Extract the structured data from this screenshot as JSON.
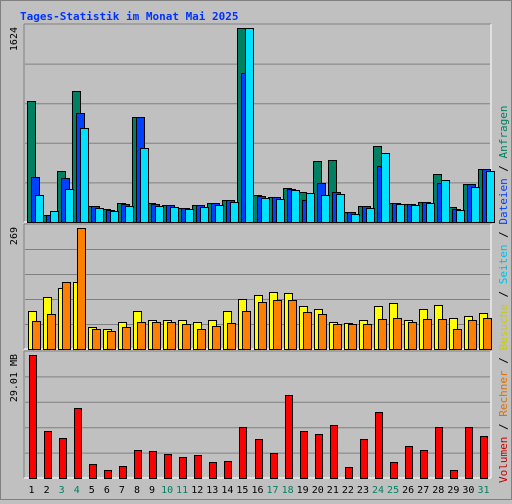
{
  "chart_data": {
    "type": "bar",
    "title": "Tages-Statistik im Monat Mai 2025",
    "categories": [
      "1",
      "2",
      "3",
      "4",
      "5",
      "6",
      "7",
      "8",
      "9",
      "10",
      "11",
      "12",
      "13",
      "14",
      "15",
      "16",
      "17",
      "18",
      "19",
      "20",
      "21",
      "22",
      "23",
      "24",
      "25",
      "26",
      "27",
      "28",
      "29",
      "30",
      "31"
    ],
    "weekend_days": [
      3,
      4,
      10,
      11,
      17,
      18,
      24,
      25,
      31
    ],
    "panels": [
      {
        "id": "top",
        "max_label": "1624",
        "ymax": 1624,
        "series": [
          {
            "name": "Anfragen",
            "color": "#008060",
            "values": [
              1015,
              60,
              430,
              1100,
              130,
              105,
              160,
              880,
              155,
              140,
              120,
              140,
              160,
              180,
              1624,
              225,
              210,
              285,
              255,
              510,
              520,
              80,
              130,
              640,
              160,
              150,
              170,
              400,
              125,
              315,
              440
            ]
          },
          {
            "name": "Dateien",
            "color": "#0040ff",
            "values": [
              380,
              60,
              370,
              910,
              130,
              100,
              150,
              880,
              150,
              140,
              120,
              140,
              160,
              180,
              1250,
              220,
              210,
              280,
              180,
              330,
              250,
              80,
              130,
              470,
              160,
              150,
              170,
              325,
              110,
              315,
              440
            ]
          },
          {
            "name": "Seiten",
            "color": "#00e0ff",
            "values": [
              230,
              95,
              280,
              790,
              115,
              90,
              130,
              620,
              130,
              125,
              110,
              125,
              145,
              170,
              1624,
              200,
              195,
              270,
              240,
              230,
              235,
              70,
              120,
              580,
              150,
              140,
              160,
              350,
              100,
              295,
              430
            ]
          }
        ]
      },
      {
        "id": "middle",
        "max_label": "269",
        "ymax": 269,
        "series": [
          {
            "name": "Besuche",
            "color": "#ffff00",
            "values": [
              85,
              115,
              135,
              150,
              50,
              45,
              60,
              85,
              64,
              64,
              65,
              60,
              64,
              85,
              112,
              120,
              126,
              124,
              96,
              88,
              60,
              58,
              64,
              96,
              103,
              65,
              88,
              97,
              70,
              74,
              80
            ]
          },
          {
            "name": "Rechner",
            "color": "#ff8000",
            "values": [
              62,
              78,
              150,
              269,
              45,
              40,
              48,
              59,
              60,
              60,
              55,
              45,
              52,
              58,
              85,
              105,
              108,
              110,
              82,
              78,
              55,
              55,
              55,
              66,
              70,
              60,
              66,
              66,
              45,
              65,
              68
            ]
          }
        ]
      },
      {
        "id": "bottom",
        "max_label": "29.01 MB",
        "ymax": 29.01,
        "series": [
          {
            "name": "Volumen",
            "color": "#ff0000",
            "values": [
              29.01,
              11.1,
              9.5,
              16.4,
              3.3,
              1.8,
              2.8,
              6.5,
              6.4,
              5.6,
              4.9,
              5.5,
              3.8,
              4.0,
              12.0,
              9.2,
              6.0,
              19.5,
              11.2,
              10.4,
              12.5,
              2.5,
              9.3,
              15.6,
              3.8,
              7.5,
              6.7,
              12.0,
              1.8,
              12.0,
              10.0
            ]
          }
        ]
      }
    ],
    "legend": [
      {
        "text": "Volumen",
        "color": "#cc0000"
      },
      {
        "text": "Rechner",
        "color": "#e07000"
      },
      {
        "text": "Besuche",
        "color": "#cccc00"
      },
      {
        "text": "Seiten",
        "color": "#00c0e0"
      },
      {
        "text": "Dateien",
        "color": "#0040ff"
      },
      {
        "text": "Anfragen",
        "color": "#008060"
      }
    ],
    "legend_separator": " / ",
    "grid": true
  }
}
